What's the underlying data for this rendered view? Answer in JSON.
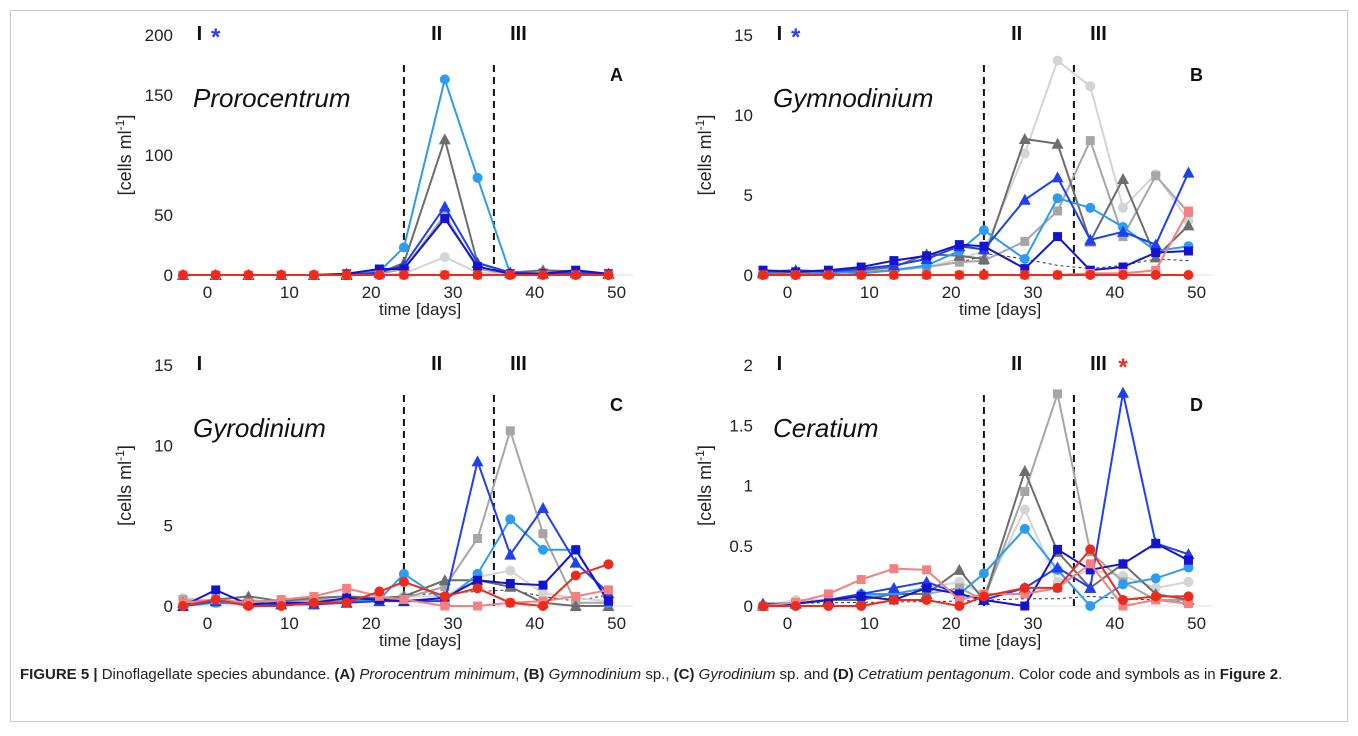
{
  "caption": {
    "label": "FIGURE 5 |",
    "intro": " Dinoflagellate species abundance. ",
    "a_ref": "(A)",
    "a_name": "Prorocentrum minimum",
    "sep1": ", ",
    "b_ref": "(B)",
    "b_name": "Gymnodinium",
    "b_suffix": " sp., ",
    "c_ref": "(C)",
    "c_name": "Gyrodinium",
    "c_suffix": " sp. and ",
    "d_ref": "(D)",
    "d_name": "Cetratium pentagonum",
    "tail": ". Color code and symbols as in ",
    "fig_ref": "Figure 2",
    "end": "."
  },
  "colors": {
    "lightgray": "#d4d4d4",
    "midgray": "#a6a6a6",
    "darkgray": "#6d6d6d",
    "lightblue": "#2c9cf0",
    "blue": "#1f3ff0",
    "darkblue": "#1414d0",
    "salmon": "#f58080",
    "red": "#ee2a1a",
    "asterisk_blue": "#2a3ff0",
    "asterisk_red": "#ee2a1a"
  },
  "chart_data": [
    {
      "panel": "A",
      "type": "line",
      "title": "Prorocentrum",
      "xlabel": "time [days]",
      "ylabel": "[cells ml-1]",
      "xlim": [
        -3,
        52
      ],
      "ylim": [
        0,
        200
      ],
      "xticks": [
        0,
        10,
        20,
        30,
        40,
        50
      ],
      "yticks": [
        0,
        50,
        100,
        150,
        200
      ],
      "ytick_labels": [
        "0",
        "50",
        "100",
        "150",
        "200"
      ],
      "phase_lines": [
        24,
        35
      ],
      "phases": [
        {
          "label": "I",
          "x": -1
        },
        {
          "label": "II",
          "x": 28
        },
        {
          "label": "III",
          "x": 38
        }
      ],
      "asterisk": {
        "x": 1,
        "color": "asterisk_blue"
      },
      "x": [
        -3,
        1,
        5,
        9,
        13,
        17,
        21,
        24,
        29,
        33,
        37,
        41,
        45,
        49
      ],
      "series": [
        {
          "color": "lightgray",
          "marker": "circle",
          "values": [
            0,
            0,
            0,
            0,
            0,
            0,
            0,
            1,
            15,
            2,
            1,
            2,
            1,
            0
          ]
        },
        {
          "color": "midgray",
          "marker": "square",
          "values": [
            0,
            0,
            0,
            0,
            0,
            0,
            1,
            5,
            50,
            5,
            1,
            2,
            3,
            1
          ]
        },
        {
          "color": "darkgray",
          "marker": "triangle",
          "values": [
            0,
            0,
            0,
            0,
            0,
            1,
            2,
            10,
            113,
            10,
            2,
            4,
            3,
            1
          ]
        },
        {
          "color": "lightblue",
          "marker": "circle",
          "values": [
            0,
            0,
            0,
            0,
            0,
            0,
            3,
            23,
            163,
            81,
            1,
            1,
            1,
            0
          ]
        },
        {
          "color": "blue",
          "marker": "triangle",
          "values": [
            0,
            0,
            0,
            0,
            0,
            0,
            2,
            8,
            57,
            10,
            2,
            1,
            2,
            1
          ]
        },
        {
          "color": "darkblue",
          "marker": "square",
          "values": [
            0,
            0,
            0,
            0,
            0,
            1,
            5,
            5,
            47,
            7,
            1,
            1,
            4,
            1
          ]
        },
        {
          "color": "salmon",
          "marker": "square",
          "values": [
            0,
            0,
            0,
            0,
            0,
            0,
            0,
            0,
            0,
            0,
            0,
            0,
            0,
            0
          ]
        },
        {
          "color": "red",
          "marker": "circle",
          "values": [
            0,
            0,
            0,
            0,
            0,
            0,
            0,
            0,
            0,
            0,
            0,
            0,
            0,
            0
          ]
        }
      ]
    },
    {
      "panel": "B",
      "type": "line",
      "title": "Gymnodinium",
      "xlabel": "time [days]",
      "ylabel": "[cells ml-1]",
      "xlim": [
        -3,
        52
      ],
      "ylim": [
        0,
        15
      ],
      "xticks": [
        0,
        10,
        20,
        30,
        40,
        50
      ],
      "yticks": [
        0,
        5,
        10,
        15
      ],
      "ytick_labels": [
        "0",
        "5",
        "10",
        "15"
      ],
      "phase_lines": [
        24,
        35
      ],
      "phases": [
        {
          "label": "I",
          "x": -1
        },
        {
          "label": "II",
          "x": 28
        },
        {
          "label": "III",
          "x": 38
        }
      ],
      "asterisk": {
        "x": 1,
        "color": "asterisk_blue"
      },
      "dashed_series": {
        "x": [
          -3,
          5,
          13,
          21,
          25,
          29,
          33,
          37,
          41,
          45,
          49
        ],
        "values": [
          0,
          0.1,
          0.3,
          0.8,
          1.3,
          1.0,
          0.6,
          0.4,
          0.6,
          1.0,
          0.9
        ]
      },
      "x": [
        -3,
        1,
        5,
        9,
        13,
        17,
        21,
        24,
        29,
        33,
        37,
        41,
        45,
        49
      ],
      "series": [
        {
          "color": "lightgray",
          "marker": "circle",
          "values": [
            0,
            0,
            0.1,
            0.2,
            0.4,
            0.5,
            1.0,
            1.5,
            7.6,
            13.4,
            11.8,
            4.2,
            6.3,
            3.4
          ]
        },
        {
          "color": "midgray",
          "marker": "square",
          "values": [
            0.2,
            0.1,
            0.1,
            0.2,
            0.3,
            0.5,
            0.8,
            0.9,
            2.1,
            4.0,
            8.4,
            2.4,
            6.2,
            3.9
          ]
        },
        {
          "color": "darkgray",
          "marker": "triangle",
          "values": [
            0.1,
            0.2,
            0.1,
            0.3,
            0.5,
            1.3,
            1.2,
            1.0,
            8.5,
            8.2,
            2.1,
            6.0,
            1.1,
            3.1
          ]
        },
        {
          "color": "lightblue",
          "marker": "circle",
          "values": [
            0.1,
            0,
            0.2,
            0.1,
            0.3,
            0.6,
            1.5,
            2.8,
            1.0,
            4.8,
            4.2,
            3.0,
            1.5,
            1.8
          ]
        },
        {
          "color": "blue",
          "marker": "triangle",
          "values": [
            0.2,
            0.3,
            0.2,
            0.4,
            0.6,
            1.0,
            1.8,
            1.6,
            4.7,
            6.1,
            2.2,
            2.7,
            1.9,
            6.4
          ]
        },
        {
          "color": "darkblue",
          "marker": "square",
          "values": [
            0.3,
            0.2,
            0.3,
            0.5,
            0.9,
            1.2,
            1.9,
            1.8,
            0.4,
            2.4,
            0.3,
            0.5,
            1.4,
            1.5
          ]
        },
        {
          "color": "salmon",
          "marker": "square",
          "values": [
            0,
            0,
            0,
            0,
            0,
            0,
            0,
            0,
            0,
            0,
            0.1,
            0.1,
            0.3,
            4.0
          ]
        },
        {
          "color": "red",
          "marker": "circle",
          "values": [
            0,
            0,
            0,
            0,
            0,
            0,
            0,
            0,
            0,
            0,
            0,
            0,
            0,
            0
          ]
        }
      ]
    },
    {
      "panel": "C",
      "type": "line",
      "title": "Gyrodinium",
      "xlabel": "time [days]",
      "ylabel": "[cells ml-1]",
      "xlim": [
        -3,
        52
      ],
      "ylim": [
        0,
        15
      ],
      "xticks": [
        0,
        10,
        20,
        30,
        40,
        50
      ],
      "yticks": [
        0,
        5,
        10,
        15
      ],
      "ytick_labels": [
        "0",
        "5",
        "10",
        "15"
      ],
      "phase_lines": [
        24,
        35
      ],
      "phases": [
        {
          "label": "I",
          "x": -1
        },
        {
          "label": "II",
          "x": 28
        },
        {
          "label": "III",
          "x": 38
        }
      ],
      "dashed_series": {
        "x": [
          -3,
          9,
          21,
          25,
          29,
          33,
          37,
          41,
          45,
          49
        ],
        "values": [
          0.2,
          0.2,
          0.4,
          0.7,
          0.8,
          0.9,
          1.0,
          0.6,
          0.3,
          0.7
        ]
      },
      "x": [
        -3,
        1,
        5,
        9,
        13,
        17,
        21,
        24,
        29,
        33,
        37,
        41,
        45,
        49
      ],
      "series": [
        {
          "color": "lightgray",
          "marker": "circle",
          "values": [
            0.5,
            0.3,
            0.4,
            0.2,
            0.3,
            0.4,
            0.5,
            0.6,
            0.6,
            1.8,
            2.2,
            0.8,
            0.5,
            0.3
          ]
        },
        {
          "color": "midgray",
          "marker": "square",
          "values": [
            0.4,
            0.2,
            0.3,
            0.3,
            0.4,
            0.4,
            0.5,
            0.5,
            1.2,
            4.2,
            10.9,
            4.5,
            0.2,
            0.2
          ]
        },
        {
          "color": "darkgray",
          "marker": "triangle",
          "values": [
            0.2,
            0.4,
            0.6,
            0.3,
            0.5,
            0.6,
            0.5,
            0.6,
            1.6,
            1.6,
            1.2,
            0.2,
            0,
            0
          ]
        },
        {
          "color": "lightblue",
          "marker": "circle",
          "values": [
            0,
            0.2,
            0.1,
            0.1,
            0.2,
            0.3,
            0.4,
            2.0,
            0.3,
            2.0,
            5.4,
            3.5,
            3.5,
            0.2
          ]
        },
        {
          "color": "blue",
          "marker": "triangle",
          "values": [
            0,
            0.3,
            0.2,
            0.1,
            0.1,
            0.2,
            0.3,
            0.3,
            0.3,
            9.0,
            3.2,
            6.1,
            2.7,
            0.8
          ]
        },
        {
          "color": "darkblue",
          "marker": "square",
          "values": [
            0,
            1.0,
            0.1,
            0.2,
            0.2,
            0.5,
            0.4,
            0.3,
            0.5,
            1.6,
            1.4,
            1.3,
            3.5,
            0.3
          ]
        },
        {
          "color": "salmon",
          "marker": "square",
          "values": [
            0.2,
            0.4,
            0.2,
            0.4,
            0.6,
            1.1,
            0.6,
            0.4,
            0,
            0,
            0.2,
            0.3,
            0.6,
            1.0
          ]
        },
        {
          "color": "red",
          "marker": "circle",
          "values": [
            0,
            0.4,
            0,
            0,
            0.2,
            0.2,
            0.9,
            1.5,
            0.6,
            1.1,
            0.2,
            0,
            1.9,
            2.6
          ]
        }
      ]
    },
    {
      "panel": "D",
      "type": "line",
      "title": "Ceratium",
      "xlabel": "time [days]",
      "ylabel": "[cells ml-1]",
      "xlim": [
        -3,
        52
      ],
      "ylim": [
        0,
        2
      ],
      "xticks": [
        0,
        10,
        20,
        30,
        40,
        50
      ],
      "yticks": [
        0,
        0.5,
        1,
        1.5,
        2
      ],
      "ytick_labels": [
        "0",
        "0.5",
        "1",
        "1.5",
        "2"
      ],
      "phase_lines": [
        24,
        35
      ],
      "phases": [
        {
          "label": "I",
          "x": -1
        },
        {
          "label": "II",
          "x": 28
        },
        {
          "label": "III",
          "x": 38
        }
      ],
      "asterisk": {
        "x": 41,
        "color": "asterisk_red"
      },
      "dashed_series": {
        "x": [
          -3,
          9,
          21,
          25,
          29,
          33,
          37,
          41,
          45,
          49
        ],
        "values": [
          0.02,
          0.03,
          0.04,
          0.05,
          0.06,
          0.06,
          0.08,
          0.06,
          0.05,
          0.04
        ]
      },
      "x": [
        -3,
        1,
        5,
        9,
        13,
        17,
        21,
        24,
        29,
        33,
        37,
        41,
        45,
        49
      ],
      "series": [
        {
          "color": "lightgray",
          "marker": "circle",
          "values": [
            0,
            0.05,
            0.05,
            0.1,
            0.1,
            0.15,
            0.2,
            0.1,
            0.8,
            0.2,
            0.3,
            0.25,
            0.15,
            0.2
          ]
        },
        {
          "color": "midgray",
          "marker": "square",
          "values": [
            0,
            0.02,
            0.05,
            0.08,
            0.1,
            0.1,
            0.15,
            0.05,
            0.95,
            1.76,
            0.45,
            0.2,
            0.05,
            0.05
          ]
        },
        {
          "color": "darkgray",
          "marker": "triangle",
          "values": [
            0,
            0.02,
            0.05,
            0.05,
            0.1,
            0.1,
            0.3,
            0.05,
            1.12,
            0.45,
            0.15,
            0.35,
            0.1,
            0.05
          ]
        },
        {
          "color": "lightblue",
          "marker": "circle",
          "values": [
            0,
            0.02,
            0.05,
            0.1,
            0.1,
            0.15,
            0.1,
            0.27,
            0.64,
            0.3,
            0,
            0.18,
            0.23,
            0.32
          ]
        },
        {
          "color": "blue",
          "marker": "triangle",
          "values": [
            0.02,
            0.02,
            0.05,
            0.1,
            0.15,
            0.2,
            0.1,
            0.05,
            0.15,
            0.32,
            0.15,
            1.77,
            0.52,
            0.43
          ]
        },
        {
          "color": "darkblue",
          "marker": "square",
          "values": [
            0,
            0.02,
            0.05,
            0.08,
            0.05,
            0.15,
            0.1,
            0.05,
            0,
            0.47,
            0.3,
            0.35,
            0.52,
            0.38
          ]
        },
        {
          "color": "salmon",
          "marker": "square",
          "values": [
            0,
            0.03,
            0.1,
            0.22,
            0.31,
            0.3,
            0.05,
            0.1,
            0.1,
            0.15,
            0.35,
            0,
            0.05,
            0.02
          ]
        },
        {
          "color": "red",
          "marker": "circle",
          "values": [
            0,
            0,
            0,
            0,
            0.05,
            0.05,
            0,
            0.08,
            0.15,
            0.15,
            0.47,
            0.05,
            0.08,
            0.08
          ]
        }
      ]
    }
  ]
}
